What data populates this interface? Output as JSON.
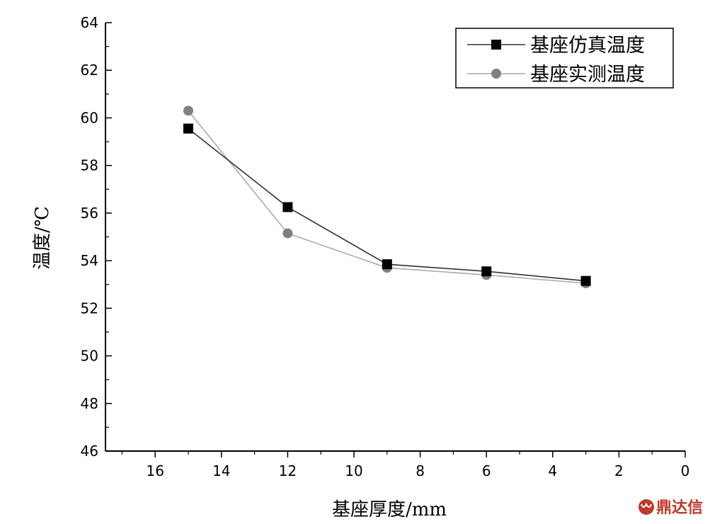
{
  "chart_data": {
    "type": "line",
    "title": "",
    "xlabel": "基座厚度/mm",
    "ylabel": "温度/℃",
    "xlim": [
      17.5,
      0
    ],
    "ylim": [
      46,
      64
    ],
    "x_ticks": [
      16,
      14,
      12,
      10,
      8,
      6,
      4,
      2,
      0
    ],
    "y_ticks": [
      46,
      48,
      50,
      52,
      54,
      56,
      58,
      60,
      62,
      64
    ],
    "x_tick_labels": [
      "16",
      "14",
      "12",
      "10",
      "8",
      "6",
      "4",
      "2",
      "0"
    ],
    "y_tick_labels": [
      "46",
      "48",
      "50",
      "52",
      "54",
      "56",
      "58",
      "60",
      "62",
      "64"
    ],
    "x_reversed": true,
    "grid": false,
    "legend_position": "top-right",
    "series": [
      {
        "name": "基座仿真温度",
        "marker": "square",
        "color": "#000000",
        "line_color": "#333333",
        "x": [
          15,
          12,
          9,
          6,
          3
        ],
        "y": [
          59.55,
          56.25,
          53.85,
          53.55,
          53.15
        ]
      },
      {
        "name": "基座实测温度",
        "marker": "circle",
        "color": "#808080",
        "line_color": "#aaaaaa",
        "x": [
          15,
          12,
          9,
          6,
          3
        ],
        "y": [
          60.3,
          55.15,
          53.7,
          53.4,
          53.05
        ]
      }
    ]
  },
  "watermark": {
    "text": "鼎达信",
    "logo_icon": "dingdaxin-logo-icon",
    "color": "#c0392b"
  }
}
